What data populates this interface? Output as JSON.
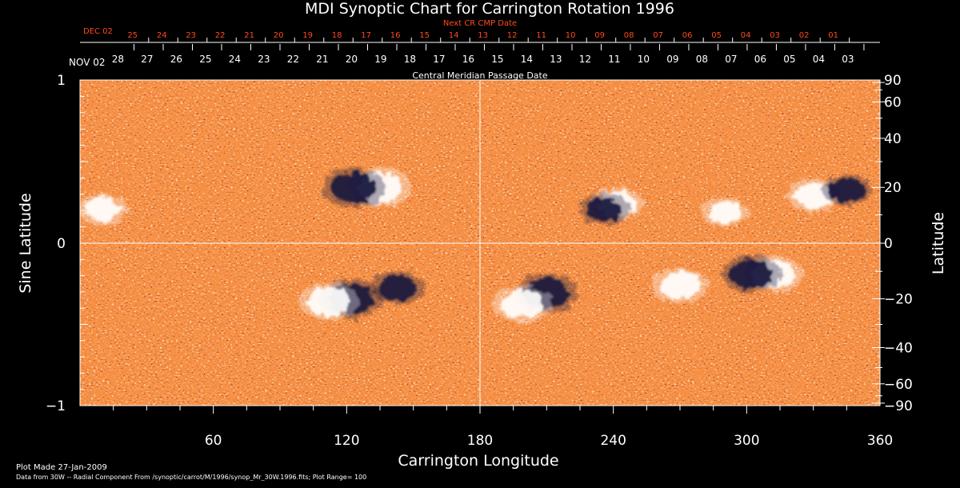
{
  "chart_data": {
    "type": "heatmap",
    "title": "MDI Synoptic Chart for Carrington Rotation 1996",
    "xlabel": "Carrington Longitude",
    "ylabel_left": "Sine Latitude",
    "ylabel_right": "Latitude",
    "xlim": [
      0,
      360
    ],
    "ylim": [
      -1,
      1
    ],
    "x_ticks": [
      "60",
      "120",
      "180",
      "240",
      "300",
      "360"
    ],
    "x_tick_values": [
      60,
      120,
      180,
      240,
      300,
      360
    ],
    "y_left_ticks": [
      "1",
      "0",
      "−1"
    ],
    "y_left_tick_values": [
      1,
      0,
      -1
    ],
    "y_right_ticks": [
      "90",
      "60",
      "40",
      "20",
      "0",
      "−20",
      "−40",
      "−60",
      "−90"
    ],
    "y_right_tick_values": [
      90,
      60,
      40,
      20,
      0,
      -20,
      -40,
      -60,
      -90
    ],
    "cmp_axis": {
      "label": "Central Meridian Passage Date",
      "start_label": "NOV 02",
      "labels": [
        "28",
        "27",
        "26",
        "25",
        "24",
        "23",
        "22",
        "21",
        "20",
        "19",
        "18",
        "17",
        "16",
        "15",
        "14",
        "13",
        "12",
        "11",
        "10",
        "09",
        "08",
        "07",
        "06",
        "05",
        "04",
        "03"
      ]
    },
    "next_cr_axis": {
      "label": "Next CR CMP Date",
      "start_label": "DEC 02",
      "labels": [
        "25",
        "24",
        "23",
        "22",
        "21",
        "20",
        "19",
        "18",
        "17",
        "16",
        "15",
        "14",
        "13",
        "12",
        "11",
        "10",
        "09",
        "08",
        "07",
        "06",
        "05",
        "04",
        "03",
        "02",
        "01"
      ]
    },
    "plot_range": 100,
    "colors": {
      "background": "#000000",
      "field_base": "#e84a12",
      "positive": "#ffffff",
      "negative": "#14143c"
    },
    "active_regions": [
      {
        "lon": 135,
        "lat": 20,
        "polarity": "positive",
        "strength": 1.0
      },
      {
        "lon": 123,
        "lat": 20,
        "polarity": "negative",
        "strength": 1.0
      },
      {
        "lon": 10,
        "lat": 12,
        "polarity": "positive",
        "strength": 0.6
      },
      {
        "lon": 122,
        "lat": -20,
        "polarity": "negative",
        "strength": 1.0
      },
      {
        "lon": 112,
        "lat": -21,
        "polarity": "positive",
        "strength": 0.9
      },
      {
        "lon": 143,
        "lat": -16,
        "polarity": "negative",
        "strength": 0.7
      },
      {
        "lon": 210,
        "lat": -18,
        "polarity": "negative",
        "strength": 1.0
      },
      {
        "lon": 199,
        "lat": -22,
        "polarity": "positive",
        "strength": 0.9
      },
      {
        "lon": 312,
        "lat": -11,
        "polarity": "positive",
        "strength": 0.9
      },
      {
        "lon": 302,
        "lat": -11,
        "polarity": "negative",
        "strength": 0.9
      },
      {
        "lon": 270,
        "lat": -15,
        "polarity": "positive",
        "strength": 0.8
      },
      {
        "lon": 242,
        "lat": 14,
        "polarity": "positive",
        "strength": 0.7
      },
      {
        "lon": 236,
        "lat": 12,
        "polarity": "negative",
        "strength": 0.6
      },
      {
        "lon": 330,
        "lat": 17,
        "polarity": "positive",
        "strength": 0.7
      },
      {
        "lon": 345,
        "lat": 19,
        "polarity": "negative",
        "strength": 0.6
      },
      {
        "lon": 290,
        "lat": 11,
        "polarity": "positive",
        "strength": 0.5
      }
    ]
  },
  "footer": {
    "plot_made": "Plot Made 27-Jan-2009",
    "data_source": "Data from 30W -- Radial Component From /synoptic/carrot/M/1996/synop_Mr_30W.1996.fits; Plot Range=  100"
  }
}
